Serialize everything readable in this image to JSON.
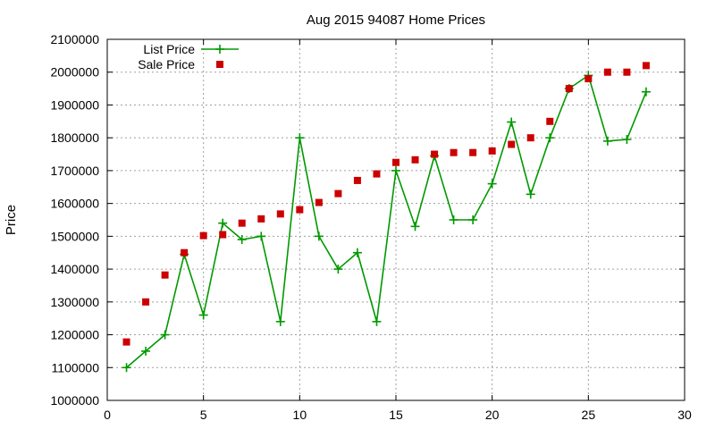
{
  "chart_data": {
    "type": "line",
    "title": "Aug 2015 94087 Home Prices",
    "xlabel": "",
    "ylabel": "Price",
    "xlim": [
      0,
      30
    ],
    "ylim": [
      1000000,
      2100000
    ],
    "xticks": [
      0,
      5,
      10,
      15,
      20,
      25,
      30
    ],
    "yticks": [
      1000000,
      1100000,
      1200000,
      1300000,
      1400000,
      1500000,
      1600000,
      1700000,
      1800000,
      1900000,
      2000000,
      2100000
    ],
    "grid": true,
    "legend_position": "top-left",
    "series": [
      {
        "name": "List Price",
        "style": "line-with-plus-markers",
        "color": "#009900",
        "x": [
          1,
          2,
          3,
          4,
          5,
          6,
          7,
          8,
          9,
          10,
          11,
          12,
          13,
          14,
          15,
          16,
          17,
          18,
          19,
          20,
          21,
          22,
          23,
          24,
          25,
          26,
          27,
          28
        ],
        "values": [
          1100000,
          1150000,
          1200000,
          1445000,
          1260000,
          1540000,
          1490000,
          1500000,
          1240000,
          1800000,
          1500000,
          1400000,
          1450000,
          1240000,
          1700000,
          1530000,
          1745000,
          1550000,
          1550000,
          1660000,
          1848000,
          1628000,
          1800000,
          1950000,
          1990000,
          1790000,
          1795000,
          1940000
        ]
      },
      {
        "name": "Sale Price",
        "style": "square-markers",
        "color": "#cc0000",
        "x": [
          1,
          2,
          3,
          4,
          5,
          6,
          7,
          8,
          9,
          10,
          11,
          12,
          13,
          14,
          15,
          16,
          17,
          18,
          19,
          20,
          21,
          22,
          23,
          24,
          25,
          26,
          27,
          28
        ],
        "values": [
          1178000,
          1300000,
          1382000,
          1450000,
          1502000,
          1505000,
          1540000,
          1553000,
          1568000,
          1581000,
          1603000,
          1630000,
          1670000,
          1690000,
          1725000,
          1733000,
          1750000,
          1755000,
          1755000,
          1760000,
          1780000,
          1800000,
          1850000,
          1950000,
          1980000,
          2000000,
          2000000,
          2020000
        ]
      }
    ]
  }
}
